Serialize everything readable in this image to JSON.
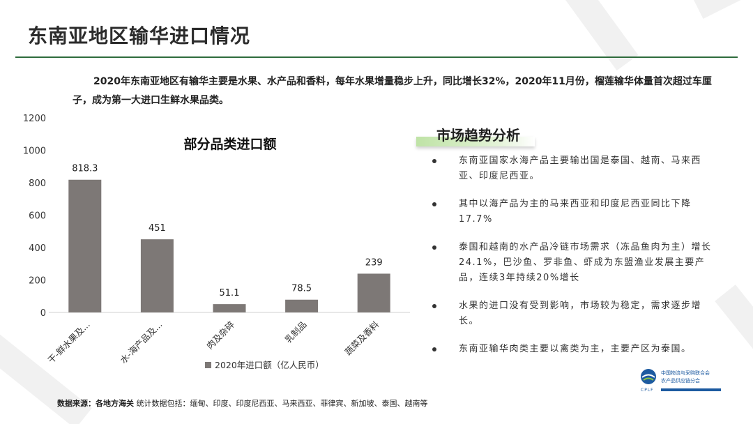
{
  "header": {
    "title": "东南亚地区输华进口情况"
  },
  "intro": "2020年东南亚地区有输华主要是水果、水产品和香料，每年水果增量稳步上升，同比增长32%，2020年11月份，榴莲输华体量首次超过车厘子，成为第一大进口生鲜水果品类。",
  "chart_data": {
    "type": "bar",
    "title": "部分品类进口额",
    "categories": [
      "干-鲜水果及...",
      "水-海产品及...",
      "肉及杂碎",
      "乳制品",
      "蔬菜及香料"
    ],
    "series": [
      {
        "name": "2020年进口额（亿人民币）",
        "values": [
          818.3,
          451,
          51.1,
          78.5,
          239
        ],
        "labels": [
          "818.3",
          "451",
          "51.1",
          "78.5",
          "239"
        ]
      }
    ],
    "ylim": [
      0,
      1200
    ],
    "yticks": [
      0,
      200,
      400,
      600,
      800,
      1000,
      1200
    ],
    "grid": false,
    "legend": "bottom",
    "color": "#7d7876"
  },
  "trend": {
    "title": "市场趋势分析",
    "items": [
      "东南亚国家水海产品主要输出国是泰国、越南、马来西亚、印度尼西亚。",
      "其中以海产品为主的马来西亚和印度尼西亚同比下降17.7%",
      "泰国和越南的水产品冷链市场需求（冻品鱼肉为主）增长24.1%，巴沙鱼、罗非鱼、虾成为东盟渔业发展主要产品，连续3年持续20%增长",
      "水果的进口没有受到影响，市场较为稳定，需求逐步增长。",
      "东南亚输华肉类主要以禽类为主，主要产区为泰国。"
    ]
  },
  "source": {
    "label": "数据来源：各地方海关",
    "text": "统计数据包括：缅甸、印度、印度尼西亚、马来西亚、菲律宾、新加坡、泰国、越南等"
  },
  "logo": {
    "line1": "中国物流与采购联合会",
    "line2": "农产品供应链分会",
    "en": "CPLF"
  },
  "colors": {
    "accent": "#2e6b3c",
    "bar": "#7d7876",
    "logo": "#1c5aa0"
  }
}
